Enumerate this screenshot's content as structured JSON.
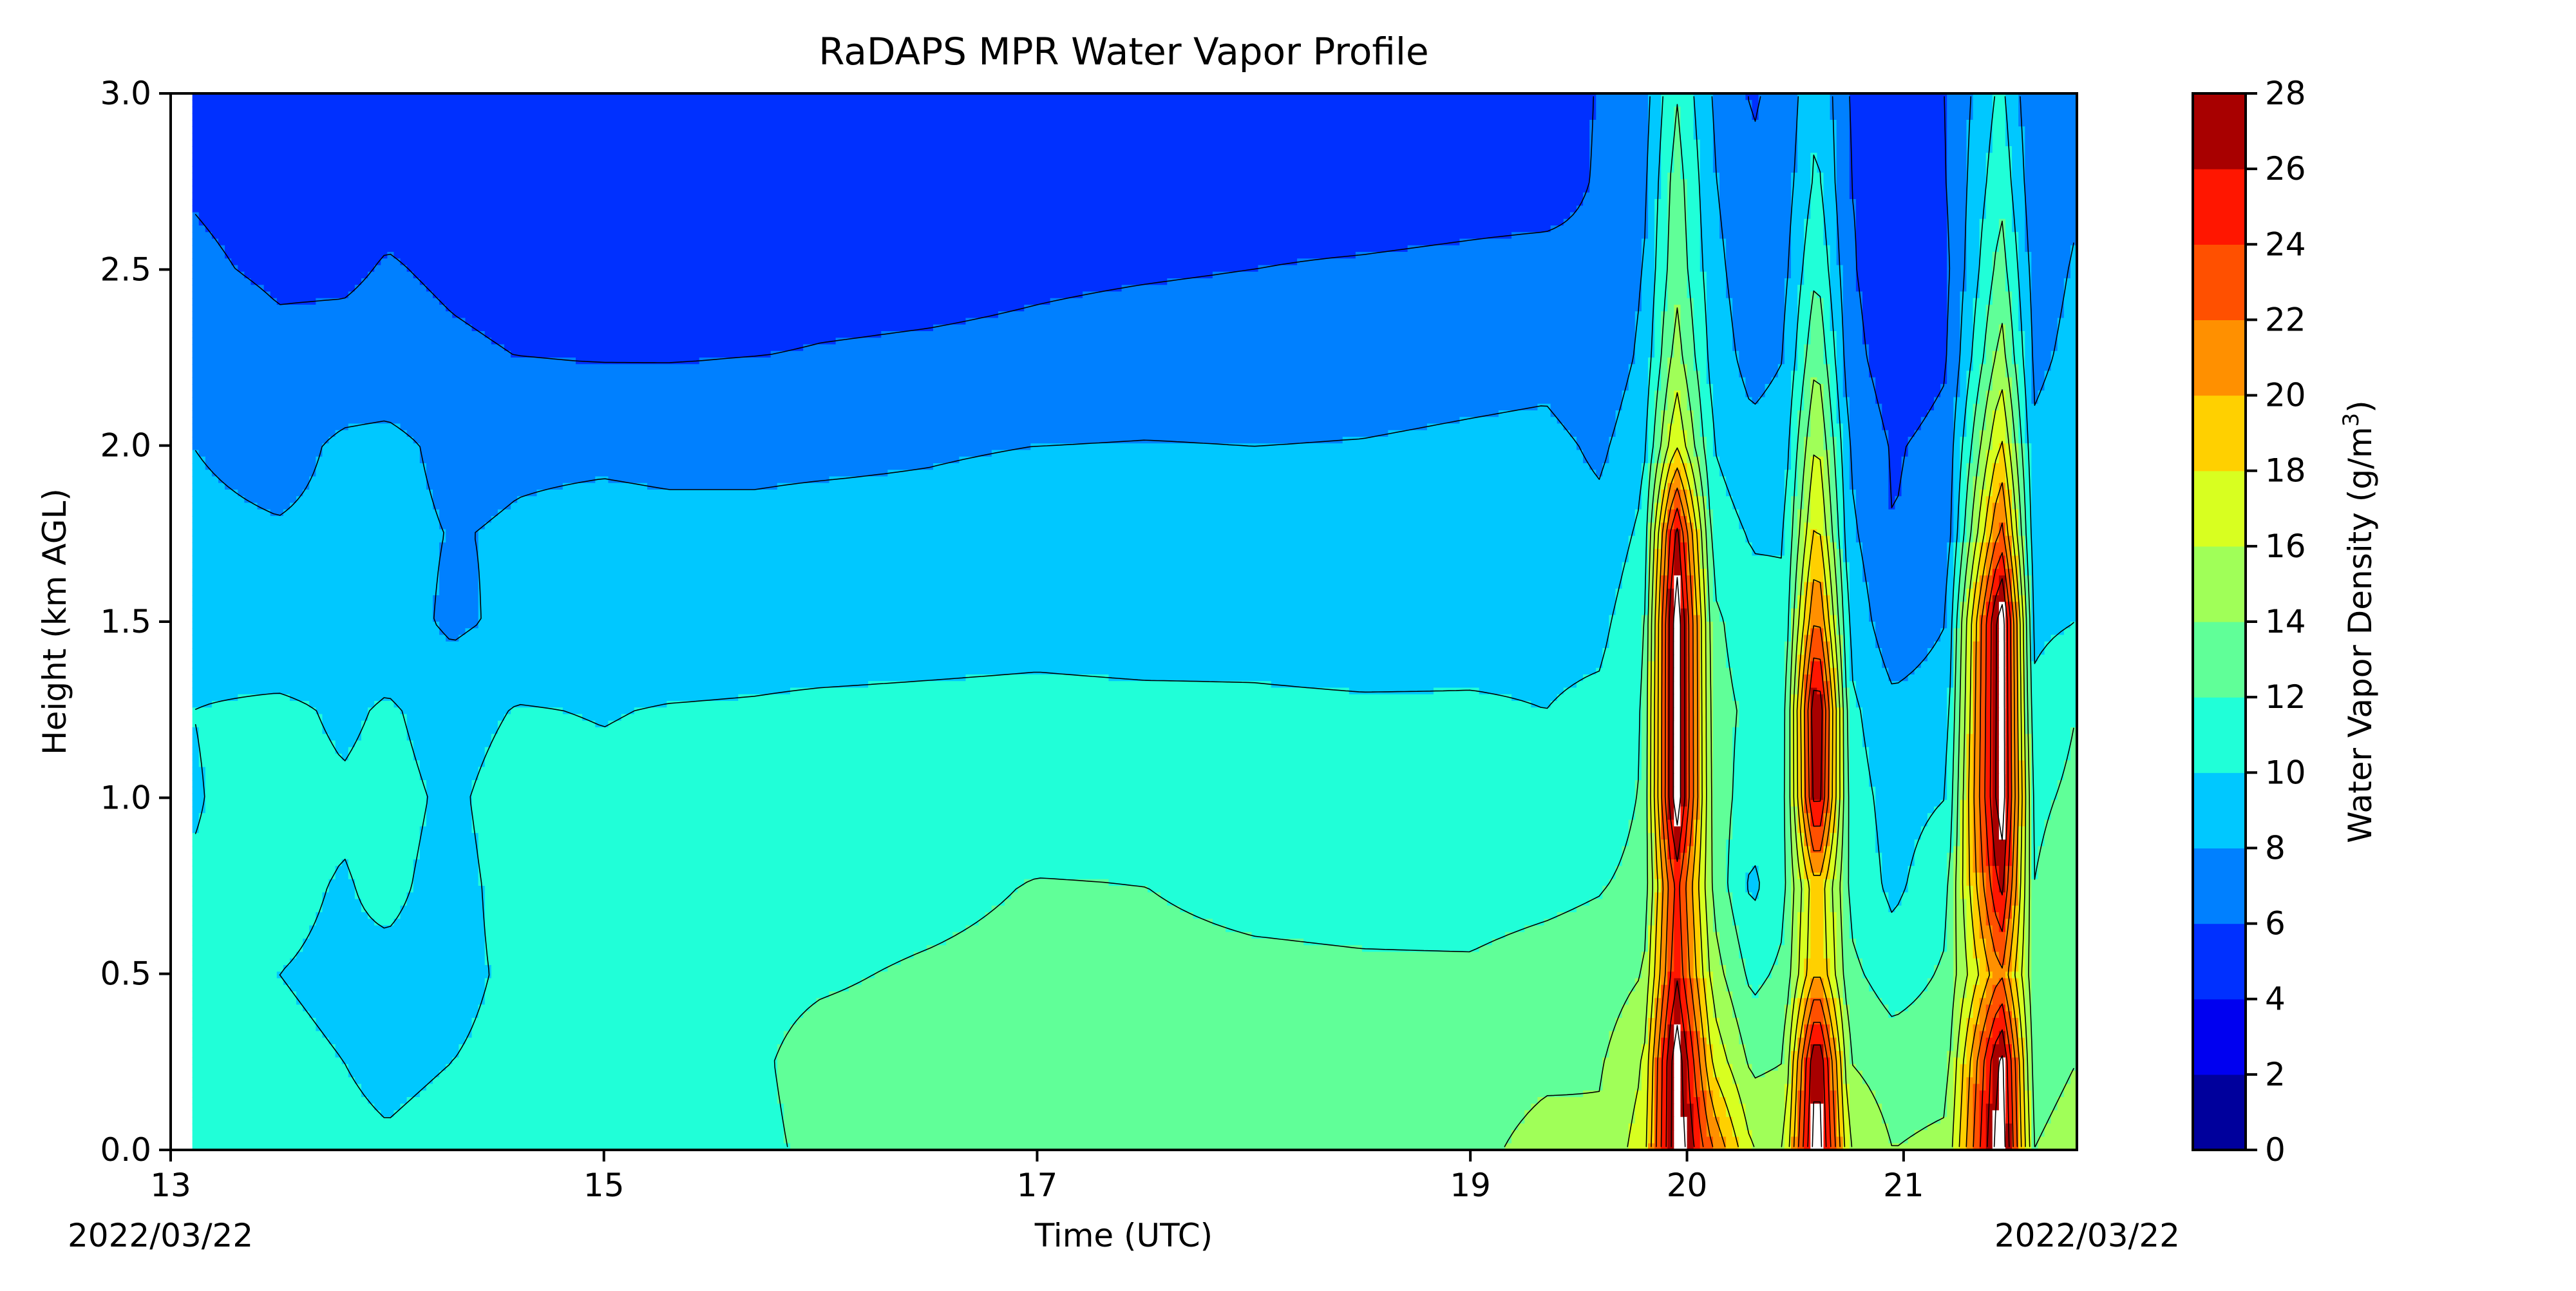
{
  "chart_data": {
    "type": "heatmap",
    "subtype": "filled-contour",
    "title": "RaDAPS MPR Water Vapor Profile",
    "xlabel": "Time (UTC)",
    "ylabel": "Height (km AGL)",
    "date_left": "2022/03/22",
    "date_right": "2022/03/22",
    "colorbar_label_prefix": "Water Vapor Density (g/m",
    "colorbar_label_sup": "3",
    "colorbar_label_suffix": ")",
    "xlim": [
      13,
      21.8
    ],
    "ylim": [
      0,
      3
    ],
    "data_xlim": [
      13.1,
      21.8
    ],
    "x_ticks": [
      13,
      15,
      17,
      19,
      20,
      21
    ],
    "x_tick_labels": [
      "13",
      "15",
      "17",
      "19",
      "20",
      "21"
    ],
    "y_ticks": [
      0,
      0.5,
      1,
      1.5,
      2,
      2.5,
      3
    ],
    "y_tick_labels": [
      "0.0",
      "0.5",
      "1.0",
      "1.5",
      "2.0",
      "2.5",
      "3.0"
    ],
    "levels": [
      0,
      2,
      4,
      6,
      8,
      10,
      12,
      14,
      16,
      18,
      20,
      22,
      24,
      26,
      28
    ],
    "level_labels": [
      "0",
      "2",
      "4",
      "6",
      "8",
      "10",
      "12",
      "14",
      "16",
      "18",
      "20",
      "22",
      "24",
      "26",
      "28"
    ],
    "level_colors": [
      "#00009c",
      "#0000f0",
      "#0030ff",
      "#0080ff",
      "#00c8ff",
      "#20ffd8",
      "#60ff98",
      "#a0ff58",
      "#d8ff20",
      "#ffd000",
      "#ff9000",
      "#ff5000",
      "#ff1600",
      "#a80000"
    ],
    "above_max_color": "#ffffff",
    "profile_heights_km": [
      0,
      0.25,
      0.5,
      0.75,
      1.0,
      1.25,
      1.5,
      1.75,
      2.0,
      2.25,
      2.5,
      2.75,
      3.0
    ],
    "profiles": [
      {
        "t": 13.1,
        "v": [
          10.5,
          10.5,
          10.2,
          10.1,
          9.9,
          10.0,
          9.0,
          8.5,
          8.0,
          6.9,
          6.2,
          5.9,
          5.5
        ]
      },
      {
        "t": 13.5,
        "v": [
          10.3,
          10.2,
          10.0,
          10.3,
          10.6,
          10.4,
          8.3,
          8.2,
          7.2,
          6.3,
          5.8,
          5.6,
          5.4
        ]
      },
      {
        "t": 13.8,
        "v": [
          10.2,
          10.0,
          9.8,
          9.9,
          10.2,
          9.7,
          8.6,
          8.5,
          8.4,
          6.4,
          5.8,
          5.5,
          5.3
        ]
      },
      {
        "t": 14.0,
        "v": [
          10.1,
          9.8,
          9.7,
          10.3,
          10.5,
          10.2,
          9.0,
          8.7,
          8.6,
          6.5,
          6.1,
          5.6,
          5.4
        ]
      },
      {
        "t": 14.3,
        "v": [
          10.3,
          10.0,
          9.6,
          9.5,
          9.7,
          9.3,
          7.6,
          7.9,
          7.4,
          6.2,
          5.8,
          5.5,
          5.2
        ]
      },
      {
        "t": 14.6,
        "v": [
          10.6,
          10.4,
          10.3,
          10.6,
          10.8,
          10.1,
          8.5,
          8.2,
          7.7,
          6.0,
          5.6,
          5.3,
          5.0
        ]
      },
      {
        "t": 15.0,
        "v": [
          10.7,
          10.6,
          10.3,
          10.5,
          10.4,
          9.9,
          8.8,
          8.5,
          7.7,
          5.9,
          5.5,
          5.2,
          5.0
        ]
      },
      {
        "t": 15.3,
        "v": [
          11.2,
          11.1,
          10.9,
          10.8,
          10.6,
          10.1,
          8.7,
          8.4,
          7.6,
          5.9,
          5.4,
          5.1,
          4.9
        ]
      },
      {
        "t": 15.7,
        "v": [
          11.7,
          11.8,
          11.6,
          11.3,
          10.8,
          10.2,
          8.9,
          8.2,
          7.8,
          6.0,
          5.3,
          5.0,
          4.8
        ]
      },
      {
        "t": 16.0,
        "v": [
          12.3,
          12.5,
          11.8,
          11.3,
          10.8,
          10.4,
          8.8,
          8.3,
          7.8,
          6.1,
          5.5,
          5.1,
          4.8
        ]
      },
      {
        "t": 16.5,
        "v": [
          12.5,
          12.6,
          12.2,
          11.5,
          10.9,
          10.5,
          9.0,
          8.3,
          7.9,
          6.2,
          5.6,
          5.2,
          4.9
        ]
      },
      {
        "t": 17.0,
        "v": [
          12.6,
          12.7,
          12.5,
          12.1,
          11.0,
          10.6,
          9.2,
          8.5,
          8.0,
          6.3,
          5.8,
          5.4,
          5.0
        ]
      },
      {
        "t": 17.5,
        "v": [
          12.7,
          12.7,
          12.4,
          12.0,
          11.1,
          10.5,
          9.0,
          8.5,
          8.1,
          6.5,
          5.9,
          5.5,
          5.1
        ]
      },
      {
        "t": 18.0,
        "v": [
          12.9,
          12.7,
          12.3,
          11.6,
          11.0,
          10.4,
          9.1,
          8.4,
          8.0,
          6.6,
          6.0,
          5.6,
          5.2
        ]
      },
      {
        "t": 18.5,
        "v": [
          13.3,
          12.8,
          12.2,
          11.5,
          10.9,
          10.3,
          8.8,
          8.3,
          8.1,
          6.8,
          6.1,
          5.5,
          5.0
        ]
      },
      {
        "t": 19.0,
        "v": [
          13.4,
          12.9,
          12.2,
          11.4,
          10.8,
          10.2,
          9.3,
          8.8,
          8.4,
          7.1,
          6.2,
          5.6,
          5.3
        ]
      },
      {
        "t": 19.35,
        "v": [
          14.8,
          13.5,
          12.6,
          11.6,
          10.5,
          10.0,
          9.5,
          9.0,
          8.6,
          7.3,
          6.3,
          5.6,
          5.3
        ]
      },
      {
        "t": 19.6,
        "v": [
          14.4,
          13.8,
          12.8,
          11.9,
          11.0,
          10.4,
          9.5,
          8.6,
          7.6,
          6.4,
          6.2,
          6.1,
          6.1
        ]
      },
      {
        "t": 19.8,
        "v": [
          17.0,
          16.0,
          14.0,
          12.5,
          12.2,
          12.0,
          11.5,
          10.5,
          9.5,
          8.5,
          8.0,
          7.5,
          7.0
        ]
      },
      {
        "t": 19.95,
        "v": [
          30.0,
          30.0,
          26.0,
          25.0,
          30.0,
          30.0,
          30.0,
          27.0,
          18.0,
          15.0,
          13.5,
          13.0,
          12.0
        ]
      },
      {
        "t": 20.12,
        "v": [
          22.0,
          17.5,
          15.0,
          13.5,
          13.0,
          12.8,
          12.5,
          11.0,
          10.0,
          9.2,
          8.7,
          8.2,
          7.8
        ]
      },
      {
        "t": 20.3,
        "v": [
          16.0,
          13.5,
          11.4,
          9.5,
          11.0,
          11.5,
          10.7,
          9.8,
          8.6,
          7.2,
          6.6,
          6.2,
          5.8
        ]
      },
      {
        "t": 20.45,
        "v": [
          16.0,
          14.0,
          12.5,
          11.5,
          11.2,
          11.0,
          10.5,
          9.8,
          9.0,
          8.0,
          7.5,
          7.0,
          6.5
        ]
      },
      {
        "t": 20.6,
        "v": [
          30.0,
          29.0,
          20.5,
          20.0,
          28.0,
          29.0,
          23.0,
          19.0,
          16.5,
          14.0,
          12.0,
          10.5,
          10.0
        ]
      },
      {
        "t": 20.75,
        "v": [
          16.0,
          14.0,
          12.5,
          11.5,
          11.0,
          10.5,
          9.5,
          8.5,
          7.8,
          6.8,
          6.3,
          6.0,
          5.8
        ]
      },
      {
        "t": 20.95,
        "v": [
          14.0,
          13.0,
          11.0,
          9.5,
          9.2,
          8.5,
          6.6,
          6.0,
          5.8,
          4.8,
          4.5,
          5.4,
          5.6
        ]
      },
      {
        "t": 21.2,
        "v": [
          14.5,
          13.2,
          12.3,
          11.5,
          10.0,
          9.0,
          8.0,
          6.9,
          6.6,
          5.8,
          5.6,
          5.9,
          6.0
        ]
      },
      {
        "t": 21.45,
        "v": [
          30.0,
          29.0,
          22.0,
          27.0,
          30.0,
          30.0,
          30.0,
          23.0,
          18.5,
          15.0,
          13.0,
          11.5,
          10.5
        ]
      },
      {
        "t": 21.6,
        "v": [
          14.0,
          13.0,
          12.5,
          12.0,
          11.5,
          10.5,
          9.5,
          8.7,
          8.3,
          7.6,
          7.2,
          6.6,
          6.2
        ]
      },
      {
        "t": 21.8,
        "v": [
          15.0,
          14.0,
          13.0,
          13.5,
          12.5,
          12.0,
          10.0,
          9.5,
          9.0,
          8.5,
          8.2,
          7.8,
          7.5
        ]
      }
    ]
  }
}
